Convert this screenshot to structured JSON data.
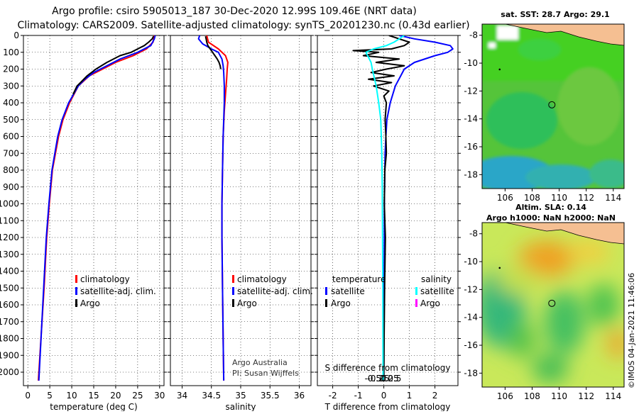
{
  "header": {
    "line1": "Argo profile: csiro 5905013_187 30-Dec-2020 12.99S 109.46E (NRT data)",
    "line2": "Climatology: CARS2009. Satellite-adjusted climatology: synTS_20201230.nc (0.43d earlier)"
  },
  "credits": {
    "argo_australia": "Argo Australia",
    "pi": "PI: Susan Wijffels",
    "imos": "©IMOS 04-Jan-2021 11:46:06"
  },
  "colors": {
    "climatology": "#ff0000",
    "satellite": "#0000ff",
    "argo": "#000000",
    "sat_salinity": "#00ffff",
    "argo_salinity": "#ff00ff"
  },
  "chart_data": [
    {
      "type": "line",
      "id": "temperature",
      "xlabel": "temperature (deg C)",
      "xlim": [
        -1,
        31
      ],
      "ylim": [
        2080,
        0
      ],
      "xticks": [
        0,
        5,
        10,
        15,
        20,
        25,
        30
      ],
      "xtick_labels": [
        "0",
        "5",
        "10",
        "15",
        "20",
        "25",
        "30"
      ],
      "yticks": [
        0,
        100,
        200,
        300,
        400,
        500,
        600,
        700,
        800,
        900,
        1000,
        1100,
        1200,
        1300,
        1400,
        1500,
        1600,
        1700,
        1800,
        1900,
        2000
      ],
      "legend": [
        "climatology",
        "satellite-adj. clim.",
        "Argo"
      ],
      "series": [
        {
          "name": "climatology",
          "color": "#ff0000",
          "pressure": [
            0,
            40,
            80,
            120,
            160,
            200,
            240,
            300,
            400,
            500,
            600,
            800,
            1000,
            1200,
            1500,
            2050
          ],
          "values": [
            28.8,
            28.5,
            27.0,
            24.0,
            20.0,
            17.0,
            14.0,
            11.5,
            9.5,
            8.0,
            7.0,
            5.6,
            4.9,
            4.3,
            3.7,
            2.4
          ]
        },
        {
          "name": "satellite-adj. clim.",
          "color": "#0000ff",
          "pressure": [
            0,
            20,
            60,
            100,
            140,
            180,
            220,
            260,
            300,
            400,
            500,
            600,
            800,
            1000,
            1200,
            1500,
            2050
          ],
          "values": [
            29.0,
            28.8,
            28.0,
            25.0,
            21.0,
            18.0,
            15.0,
            13.0,
            11.5,
            9.3,
            7.8,
            6.8,
            5.5,
            4.8,
            4.2,
            3.6,
            2.5
          ]
        },
        {
          "name": "Argo",
          "color": "#000000",
          "pressure": [
            5,
            20,
            40,
            60,
            80,
            100,
            120,
            160,
            200,
            240,
            280,
            300,
            350
          ],
          "values": [
            28.6,
            28.3,
            27.5,
            26.5,
            25.0,
            23.5,
            21.0,
            18.0,
            15.5,
            13.5,
            12.0,
            11.2,
            10.3
          ]
        }
      ]
    },
    {
      "type": "line",
      "id": "salinity",
      "xlabel": "salinity",
      "xlim": [
        33.8,
        36.2
      ],
      "ylim": [
        2080,
        0
      ],
      "xticks": [
        34,
        34.5,
        35,
        35.5,
        36
      ],
      "xtick_labels": [
        "34",
        "34.5",
        "35",
        "35.5",
        "36"
      ],
      "yticks": [
        0,
        100,
        200,
        300,
        400,
        500,
        600,
        700,
        800,
        900,
        1000,
        1100,
        1200,
        1300,
        1400,
        1500,
        1600,
        1700,
        1800,
        1900,
        2000
      ],
      "legend": [
        "climatology",
        "satellite-adj. clim.",
        "Argo"
      ],
      "series": [
        {
          "name": "climatology",
          "color": "#ff0000",
          "pressure": [
            0,
            40,
            80,
            120,
            160,
            200,
            260,
            350,
            450,
            600,
            800,
            1000,
            1200,
            1500,
            1800,
            2050
          ],
          "values": [
            34.42,
            34.45,
            34.62,
            34.74,
            34.78,
            34.77,
            34.76,
            34.74,
            34.72,
            34.7,
            34.69,
            34.68,
            34.68,
            34.69,
            34.7,
            34.71
          ]
        },
        {
          "name": "satellite-adj. clim.",
          "color": "#0000ff",
          "pressure": [
            0,
            20,
            50,
            80,
            100,
            140,
            180,
            220,
            300,
            400,
            600,
            800,
            1000,
            1200,
            1500,
            1800,
            2050
          ],
          "values": [
            34.3,
            34.28,
            34.35,
            34.5,
            34.62,
            34.68,
            34.7,
            34.71,
            34.72,
            34.72,
            34.7,
            34.69,
            34.68,
            34.68,
            34.69,
            34.7,
            34.71
          ]
        },
        {
          "name": "Argo",
          "color": "#000000",
          "pressure": [
            5,
            20,
            40,
            60,
            80,
            100,
            120,
            140,
            160,
            180,
            200
          ],
          "values": [
            34.4,
            34.41,
            34.42,
            34.44,
            34.48,
            34.52,
            34.56,
            34.6,
            34.63,
            34.65,
            34.66
          ]
        }
      ]
    },
    {
      "type": "line",
      "id": "difference",
      "xlabel": "T difference from climatology",
      "secondary_xlabel": "S difference from climatology",
      "xlim": [
        -2.6,
        2.9
      ],
      "ylim": [
        2080,
        0
      ],
      "xticks": [
        -2,
        -1,
        0,
        1,
        2
      ],
      "xtick_labels": [
        "-2",
        "-1",
        "0",
        "1",
        "2"
      ],
      "secondary_xticks": [
        -0.5,
        -0.25,
        0,
        0.25,
        0.5
      ],
      "secondary_xtick_labels": [
        "-0.5",
        "-0.25",
        "0",
        "0.25",
        "0.5"
      ],
      "yticks": [
        0,
        100,
        200,
        300,
        400,
        500,
        600,
        700,
        800,
        900,
        1000,
        1100,
        1200,
        1300,
        1400,
        1500,
        1600,
        1700,
        1800,
        1900,
        2000
      ],
      "legend_titles": [
        "temperature",
        "salinity"
      ],
      "legend": [
        "satellite",
        "Argo",
        "satellite",
        "Argo"
      ],
      "series": [
        {
          "name": "satellite (temperature)",
          "color": "#0000ff",
          "pressure": [
            0,
            20,
            40,
            60,
            80,
            100,
            120,
            160,
            200,
            300,
            400,
            500,
            600,
            700,
            800,
            900,
            1000,
            1200,
            1500,
            1800,
            2050
          ],
          "values": [
            0.6,
            1.2,
            2.0,
            2.6,
            2.7,
            2.5,
            2.0,
            1.2,
            0.8,
            0.45,
            0.25,
            0.12,
            0.08,
            0.05,
            0.04,
            0.03,
            0.02,
            0.02,
            0.01,
            0.0,
            0.0
          ]
        },
        {
          "name": "Argo (temperature)",
          "color": "#000000",
          "pressure": [
            0,
            20,
            40,
            60,
            80,
            90,
            100,
            120,
            140,
            160,
            180,
            200,
            220,
            240,
            260,
            280,
            300,
            330,
            360,
            400,
            500,
            600,
            700,
            800,
            1000,
            1200,
            1500,
            1800,
            2050
          ],
          "values": [
            0.2,
            0.6,
            1.0,
            0.8,
            0.3,
            -1.2,
            -0.2,
            -0.8,
            0.6,
            -0.3,
            0.8,
            0.1,
            -0.5,
            0.4,
            -0.6,
            0.3,
            -0.4,
            0.2,
            0.0,
            0.1,
            0.05,
            0.08,
            0.1,
            0.04,
            0.02,
            0.06,
            0.03,
            0.01,
            0.0
          ]
        },
        {
          "name": "satellite (salinity)",
          "color": "#00ffff",
          "pressure": [
            0,
            20,
            40,
            60,
            80,
            100,
            130,
            160,
            200,
            300,
            400,
            500,
            700,
            900,
            1200,
            1500,
            2050
          ],
          "values": [
            0.8,
            0.6,
            0.4,
            0.1,
            -0.4,
            -0.7,
            -0.6,
            -0.5,
            -0.45,
            -0.3,
            -0.2,
            -0.12,
            -0.08,
            -0.06,
            -0.05,
            -0.04,
            -0.03
          ]
        }
      ]
    },
    {
      "type": "heatmap",
      "id": "sst_map",
      "title": "sat. SST: 28.7 Argo: 29.1",
      "xlim": [
        104.3,
        114.8
      ],
      "ylim": [
        -19,
        -7.2
      ],
      "xticks": [
        106,
        108,
        110,
        112,
        114
      ],
      "xtick_labels": [
        "106",
        "108",
        "110",
        "112",
        "114"
      ],
      "yticks": [
        -8,
        -10,
        -12,
        -14,
        -16,
        -18
      ],
      "ytick_labels": [
        "-8",
        "-10",
        "-12",
        "-14",
        "-16",
        "-18"
      ],
      "float_position": [
        109.46,
        -12.99
      ],
      "prior_position": [
        105.6,
        -10.45
      ]
    },
    {
      "type": "heatmap",
      "id": "sla_map",
      "title": "Altim. SLA: 0.14",
      "subtitle": "Argo h1000: NaN h2000: NaN",
      "xlim": [
        104.3,
        114.8
      ],
      "ylim": [
        -19,
        -7.2
      ],
      "xticks": [
        106,
        108,
        110,
        112,
        114
      ],
      "xtick_labels": [
        "106",
        "108",
        "110",
        "112",
        "114"
      ],
      "yticks": [
        -8,
        -10,
        -12,
        -14,
        -16,
        -18
      ],
      "ytick_labels": [
        "-8",
        "-10",
        "-12",
        "-14",
        "-16",
        "-18"
      ],
      "float_position": [
        109.46,
        -12.99
      ],
      "prior_position": [
        105.6,
        -10.45
      ]
    }
  ]
}
